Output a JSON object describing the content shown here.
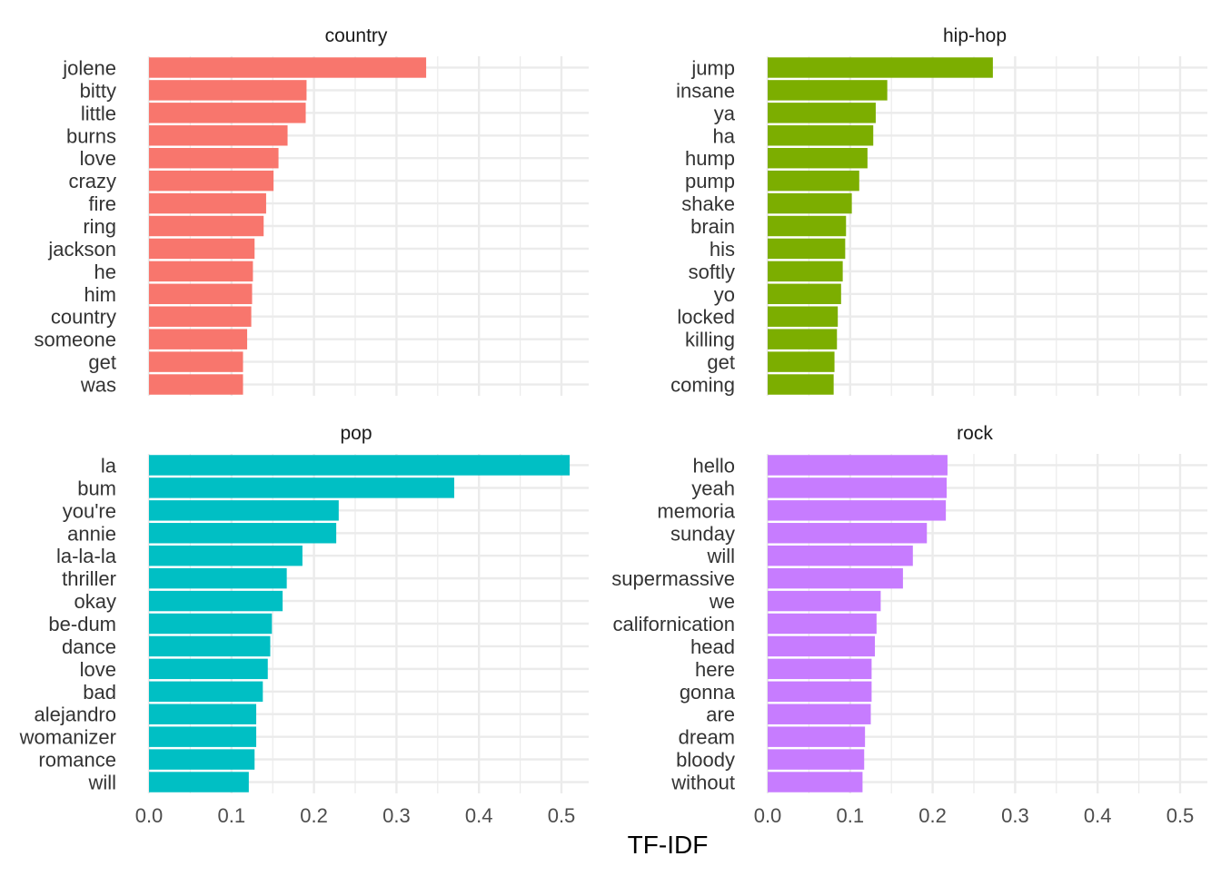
{
  "chart_data": {
    "type": "bar",
    "orientation": "horizontal",
    "xlabel": "TF-IDF",
    "ylabel": "",
    "xlim": [
      0,
      0.53
    ],
    "x_ticks": [
      0.0,
      0.1,
      0.2,
      0.3,
      0.4,
      0.5
    ],
    "x_tick_labels": [
      "0.0",
      "0.1",
      "0.2",
      "0.3",
      "0.4",
      "0.5"
    ],
    "grid": true,
    "legend": "none",
    "facets": [
      {
        "name": "country",
        "color": "#F8766D",
        "categories": [
          "jolene",
          "bitty",
          "little",
          "burns",
          "love",
          "crazy",
          "fire",
          "ring",
          "jackson",
          "he",
          "him",
          "country",
          "someone",
          "get",
          "was"
        ],
        "values": [
          0.336,
          0.191,
          0.19,
          0.168,
          0.157,
          0.151,
          0.142,
          0.139,
          0.128,
          0.126,
          0.125,
          0.124,
          0.119,
          0.114,
          0.114
        ]
      },
      {
        "name": "hip-hop",
        "color": "#7CAE00",
        "categories": [
          "jump",
          "insane",
          "ya",
          "ha",
          "hump",
          "pump",
          "shake",
          "brain",
          "his",
          "softly",
          "yo",
          "locked",
          "killing",
          "get",
          "coming"
        ],
        "values": [
          0.273,
          0.145,
          0.131,
          0.128,
          0.121,
          0.111,
          0.102,
          0.095,
          0.094,
          0.091,
          0.089,
          0.085,
          0.084,
          0.081,
          0.08
        ]
      },
      {
        "name": "pop",
        "color": "#00BFC4",
        "categories": [
          "la",
          "bum",
          "you're",
          "annie",
          "la-la-la",
          "thriller",
          "okay",
          "be-dum",
          "dance",
          "love",
          "bad",
          "alejandro",
          "womanizer",
          "romance",
          "will"
        ],
        "values": [
          0.51,
          0.37,
          0.23,
          0.227,
          0.186,
          0.167,
          0.162,
          0.149,
          0.147,
          0.144,
          0.138,
          0.13,
          0.13,
          0.128,
          0.121
        ]
      },
      {
        "name": "rock",
        "color": "#C77CFF",
        "categories": [
          "hello",
          "yeah",
          "memoria",
          "sunday",
          "will",
          "supermassive",
          "we",
          "californication",
          "head",
          "here",
          "gonna",
          "are",
          "dream",
          "bloody",
          "without"
        ],
        "values": [
          0.218,
          0.217,
          0.216,
          0.193,
          0.176,
          0.164,
          0.137,
          0.132,
          0.13,
          0.126,
          0.126,
          0.125,
          0.118,
          0.117,
          0.115
        ]
      }
    ]
  }
}
